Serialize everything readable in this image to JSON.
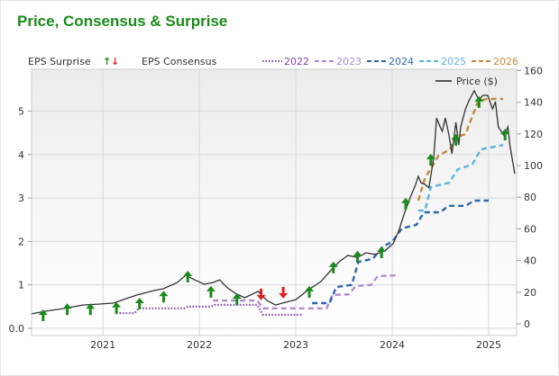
{
  "title": "Price, Consensus & Surprise",
  "chart_data": {
    "type": "line",
    "title": "Price, Consensus & Surprise",
    "legend": {
      "surprise_label": "EPS Surprise",
      "consensus_label": "EPS Consensus",
      "price_label": "Price ($)",
      "placement": "top"
    },
    "x_ticks": [
      "2021",
      "2022",
      "2023",
      "2024",
      "2025"
    ],
    "xlim": [
      2020.26,
      2025.29
    ],
    "left_axis": {
      "ticks": [
        "0.0",
        "1",
        "2",
        "3",
        "4",
        "5"
      ],
      "ylim": [
        0,
        6
      ]
    },
    "right_axis": {
      "ticks": [
        "0",
        "20",
        "40",
        "60",
        "80",
        "100",
        "120",
        "140",
        "160"
      ],
      "ylim": [
        0,
        160
      ]
    },
    "grid": true,
    "colors": {
      "price": "#333333",
      "up": "#1a8a1a",
      "down": "#e02020",
      "2022": "#7b44a8",
      "2023": "#b08cc8",
      "2024": "#2e66b0",
      "2025": "#5ab4dc",
      "2026": "#c08a3a"
    },
    "price": [
      [
        2020.26,
        6.3
      ],
      [
        2020.41,
        8.0
      ],
      [
        2020.6,
        9.7
      ],
      [
        2020.79,
        11.9
      ],
      [
        2020.97,
        12.5
      ],
      [
        2021.11,
        13.1
      ],
      [
        2021.21,
        15.3
      ],
      [
        2021.35,
        18.2
      ],
      [
        2021.53,
        21.0
      ],
      [
        2021.63,
        22.2
      ],
      [
        2021.77,
        26.1
      ],
      [
        2021.86,
        30.7
      ],
      [
        2021.95,
        27.8
      ],
      [
        2022.05,
        25.0
      ],
      [
        2022.14,
        26.1
      ],
      [
        2022.21,
        27.8
      ],
      [
        2022.28,
        23.3
      ],
      [
        2022.37,
        19.3
      ],
      [
        2022.47,
        16.5
      ],
      [
        2022.61,
        20.5
      ],
      [
        2022.7,
        14.8
      ],
      [
        2022.79,
        11.9
      ],
      [
        2022.89,
        13.6
      ],
      [
        2023.0,
        15.3
      ],
      [
        2023.12,
        21.0
      ],
      [
        2023.26,
        26.7
      ],
      [
        2023.36,
        33.5
      ],
      [
        2023.45,
        39.2
      ],
      [
        2023.54,
        43.2
      ],
      [
        2023.64,
        42.0
      ],
      [
        2023.73,
        44.9
      ],
      [
        2023.82,
        43.8
      ],
      [
        2023.92,
        46.0
      ],
      [
        2024.01,
        50.6
      ],
      [
        2024.07,
        59.1
      ],
      [
        2024.13,
        70.5
      ],
      [
        2024.2,
        81.8
      ],
      [
        2024.24,
        87.5
      ],
      [
        2024.27,
        93.2
      ],
      [
        2024.3,
        89.0
      ],
      [
        2024.34,
        88.0
      ],
      [
        2024.38,
        86.0
      ],
      [
        2024.43,
        104.5
      ],
      [
        2024.46,
        130
      ],
      [
        2024.5,
        124
      ],
      [
        2024.52,
        121.6
      ],
      [
        2024.55,
        130
      ],
      [
        2024.59,
        118.8
      ],
      [
        2024.62,
        107.4
      ],
      [
        2024.66,
        127.3
      ],
      [
        2024.69,
        113
      ],
      [
        2024.71,
        124.4
      ],
      [
        2024.76,
        135.8
      ],
      [
        2024.8,
        141.5
      ],
      [
        2024.85,
        147.2
      ],
      [
        2024.9,
        141.5
      ],
      [
        2024.94,
        144.3
      ],
      [
        2024.99,
        144.3
      ],
      [
        2025.04,
        135.8
      ],
      [
        2025.07,
        140.3
      ],
      [
        2025.1,
        124.4
      ],
      [
        2025.13,
        121.6
      ],
      [
        2025.16,
        118.8
      ],
      [
        2025.2,
        124.4
      ],
      [
        2025.22,
        113
      ],
      [
        2025.27,
        94.9
      ]
    ],
    "consensus": [
      {
        "name": "2022",
        "style": "dotted",
        "points": [
          [
            2021.14,
            0.35
          ],
          [
            2021.33,
            0.35
          ],
          [
            2021.37,
            0.46
          ],
          [
            2021.84,
            0.46
          ],
          [
            2021.88,
            0.5
          ],
          [
            2022.12,
            0.5
          ],
          [
            2022.16,
            0.54
          ],
          [
            2022.6,
            0.54
          ],
          [
            2022.66,
            0.31
          ],
          [
            2023.06,
            0.31
          ]
        ]
      },
      {
        "name": "2023",
        "style": "dashed",
        "points": [
          [
            2022.14,
            0.64
          ],
          [
            2022.6,
            0.64
          ],
          [
            2022.66,
            0.46
          ],
          [
            2023.32,
            0.46
          ],
          [
            2023.38,
            0.77
          ],
          [
            2023.55,
            0.78
          ],
          [
            2023.62,
            0.97
          ],
          [
            2023.78,
            1.0
          ],
          [
            2023.85,
            1.2
          ],
          [
            2024.05,
            1.22
          ]
        ]
      },
      {
        "name": "2024",
        "style": "dashed",
        "points": [
          [
            2023.17,
            0.58
          ],
          [
            2023.35,
            0.58
          ],
          [
            2023.42,
            0.95
          ],
          [
            2023.58,
            1.0
          ],
          [
            2023.65,
            1.53
          ],
          [
            2023.8,
            1.6
          ],
          [
            2023.9,
            1.88
          ],
          [
            2024.0,
            1.99
          ],
          [
            2024.1,
            2.3
          ],
          [
            2024.25,
            2.38
          ],
          [
            2024.33,
            2.67
          ],
          [
            2024.5,
            2.67
          ],
          [
            2024.58,
            2.82
          ],
          [
            2024.76,
            2.82
          ],
          [
            2024.85,
            2.94
          ],
          [
            2025.0,
            2.94
          ]
        ]
      },
      {
        "name": "2025",
        "style": "dashed",
        "points": [
          [
            2024.27,
            2.71
          ],
          [
            2024.34,
            2.71
          ],
          [
            2024.4,
            3.25
          ],
          [
            2024.59,
            3.35
          ],
          [
            2024.68,
            3.66
          ],
          [
            2024.83,
            3.77
          ],
          [
            2024.92,
            4.12
          ],
          [
            2025.15,
            4.22
          ]
        ]
      },
      {
        "name": "2026",
        "style": "dashed",
        "points": [
          [
            2024.27,
            2.94
          ],
          [
            2024.34,
            3.46
          ],
          [
            2024.48,
            3.98
          ],
          [
            2024.6,
            4.12
          ],
          [
            2024.65,
            4.39
          ],
          [
            2024.76,
            4.47
          ],
          [
            2024.86,
            5.05
          ],
          [
            2024.89,
            5.22
          ],
          [
            2024.98,
            5.28
          ],
          [
            2025.15,
            5.28
          ]
        ]
      }
    ],
    "surprises": [
      {
        "date": 2020.38,
        "eps": 0.29,
        "dir": "up"
      },
      {
        "date": 2020.63,
        "eps": 0.43,
        "dir": "up"
      },
      {
        "date": 2020.87,
        "eps": 0.43,
        "dir": "up"
      },
      {
        "date": 2021.14,
        "eps": 0.46,
        "dir": "up"
      },
      {
        "date": 2021.38,
        "eps": 0.56,
        "dir": "up"
      },
      {
        "date": 2021.63,
        "eps": 0.72,
        "dir": "up"
      },
      {
        "date": 2021.88,
        "eps": 1.18,
        "dir": "up"
      },
      {
        "date": 2022.12,
        "eps": 0.83,
        "dir": "up"
      },
      {
        "date": 2022.39,
        "eps": 0.66,
        "dir": "up"
      },
      {
        "date": 2022.64,
        "eps": 0.79,
        "dir": "down"
      },
      {
        "date": 2022.87,
        "eps": 0.83,
        "dir": "down"
      },
      {
        "date": 2023.14,
        "eps": 0.83,
        "dir": "up"
      },
      {
        "date": 2023.39,
        "eps": 1.39,
        "dir": "up"
      },
      {
        "date": 2023.64,
        "eps": 1.64,
        "dir": "up"
      },
      {
        "date": 2023.89,
        "eps": 1.74,
        "dir": "up"
      },
      {
        "date": 2024.14,
        "eps": 2.86,
        "dir": "up"
      },
      {
        "date": 2024.4,
        "eps": 3.87,
        "dir": "up"
      },
      {
        "date": 2024.66,
        "eps": 4.33,
        "dir": "up"
      },
      {
        "date": 2024.9,
        "eps": 5.2,
        "dir": "up"
      },
      {
        "date": 2025.17,
        "eps": 4.45,
        "dir": "up"
      }
    ]
  }
}
